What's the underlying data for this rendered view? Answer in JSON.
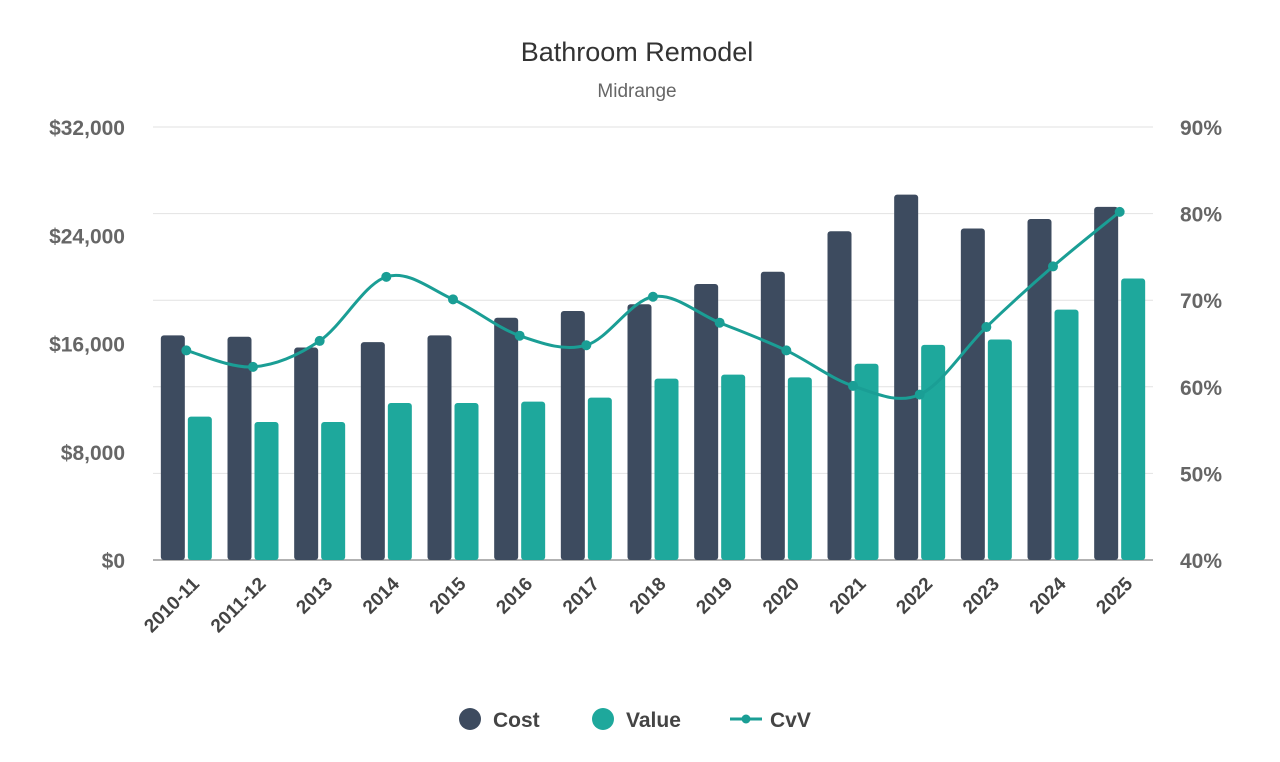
{
  "chart_data": {
    "type": "bar",
    "title": "Bathroom Remodel",
    "subtitle": "Midrange",
    "categories": [
      "2010-11",
      "2011-12",
      "2013",
      "2014",
      "2015",
      "2016",
      "2017",
      "2018",
      "2019",
      "2020",
      "2021",
      "2022",
      "2023",
      "2024",
      "2025"
    ],
    "series": [
      {
        "name": "Cost",
        "type": "bar",
        "axis": "left",
        "color": "#3d4b5f",
        "values": [
          16600,
          16500,
          15700,
          16100,
          16600,
          17900,
          18400,
          18900,
          20400,
          21300,
          24300,
          27000,
          24500,
          25200,
          26100
        ]
      },
      {
        "name": "Value",
        "type": "bar",
        "axis": "left",
        "color": "#1ea89c",
        "values": [
          10600,
          10200,
          10200,
          11600,
          11600,
          11700,
          12000,
          13400,
          13700,
          13500,
          14500,
          15900,
          16300,
          18500,
          20800
        ]
      },
      {
        "name": "CvV",
        "type": "line",
        "axis": "right",
        "color": "#1a9e95",
        "values": [
          64.2,
          62.3,
          65.3,
          72.7,
          70.1,
          65.9,
          64.8,
          70.4,
          67.4,
          64.2,
          60.1,
          59.1,
          66.9,
          73.9,
          80.2
        ]
      }
    ],
    "y_left": {
      "range": [
        0,
        32000
      ],
      "ticks": [
        "$0",
        "$8,000",
        "$16,000",
        "$24,000",
        "$32,000"
      ]
    },
    "y_right": {
      "range": [
        40,
        90
      ],
      "ticks": [
        "40%",
        "50%",
        "60%",
        "70%",
        "80%",
        "90%"
      ]
    },
    "grid": true,
    "legend": "bottom"
  }
}
